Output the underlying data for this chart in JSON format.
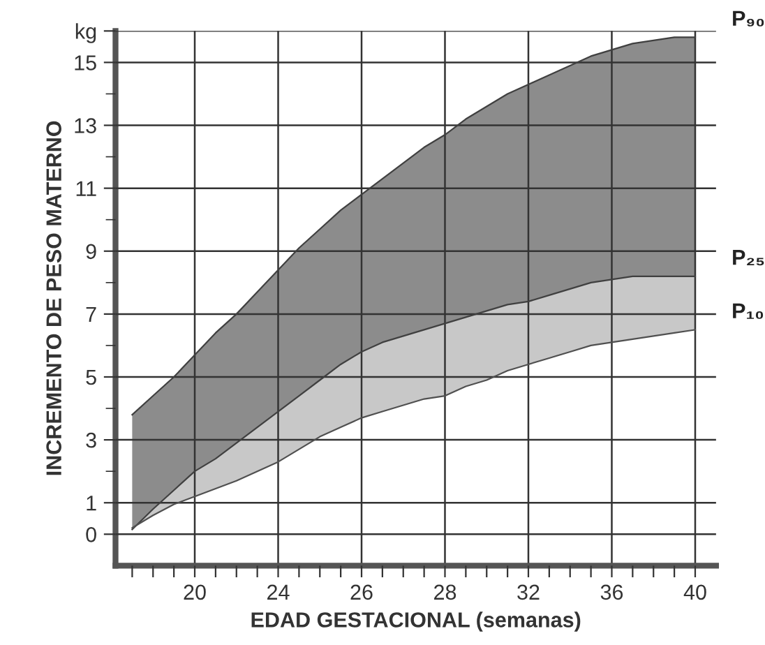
{
  "chart_data": {
    "type": "area",
    "xlabel": "EDAD GESTACIONAL (semanas)",
    "ylabel": "INCREMENTO DE PESO MATERNO",
    "categories": [
      null,
      null,
      null,
      "20",
      null,
      null,
      null,
      "24",
      null,
      null,
      null,
      "26",
      null,
      null,
      null,
      "28",
      null,
      null,
      null,
      "32",
      null,
      null,
      null,
      "36",
      null,
      null,
      null,
      "40"
    ],
    "series": [
      {
        "name": "P₉₀",
        "color": "#8c8c8c",
        "values": [
          3.8,
          4.4,
          5.0,
          5.7,
          6.4,
          7.0,
          7.7,
          8.4,
          9.1,
          9.7,
          10.3,
          10.8,
          11.3,
          11.8,
          12.3,
          12.7,
          13.2,
          13.6,
          14.0,
          14.3,
          14.6,
          14.9,
          15.2,
          15.4,
          15.6,
          15.7,
          15.8,
          15.8
        ]
      },
      {
        "name": "P₂₅",
        "color": "#c8c8c8",
        "values": [
          0.15,
          0.8,
          1.4,
          2.0,
          2.4,
          2.9,
          3.4,
          3.9,
          4.4,
          4.9,
          5.4,
          5.8,
          6.1,
          6.3,
          6.5,
          6.7,
          6.9,
          7.1,
          7.3,
          7.4,
          7.6,
          7.8,
          8.0,
          8.1,
          8.2,
          8.2,
          8.2,
          8.2
        ]
      },
      {
        "name": "P₁₀",
        "type": "line",
        "color": "#505050",
        "values": [
          0.2,
          0.6,
          0.95,
          1.2,
          1.45,
          1.7,
          2.0,
          2.3,
          2.7,
          3.1,
          3.4,
          3.7,
          3.9,
          4.1,
          4.3,
          4.4,
          4.7,
          4.9,
          5.2,
          5.4,
          5.6,
          5.8,
          6.0,
          6.1,
          6.2,
          6.3,
          6.4,
          6.5
        ]
      }
    ],
    "ylim": [
      -1,
      16
    ],
    "yticks": [
      0,
      1,
      3,
      5,
      7,
      9,
      11,
      13,
      15,
      {
        "value": 16,
        "label": "kg"
      }
    ],
    "grid": true
  }
}
